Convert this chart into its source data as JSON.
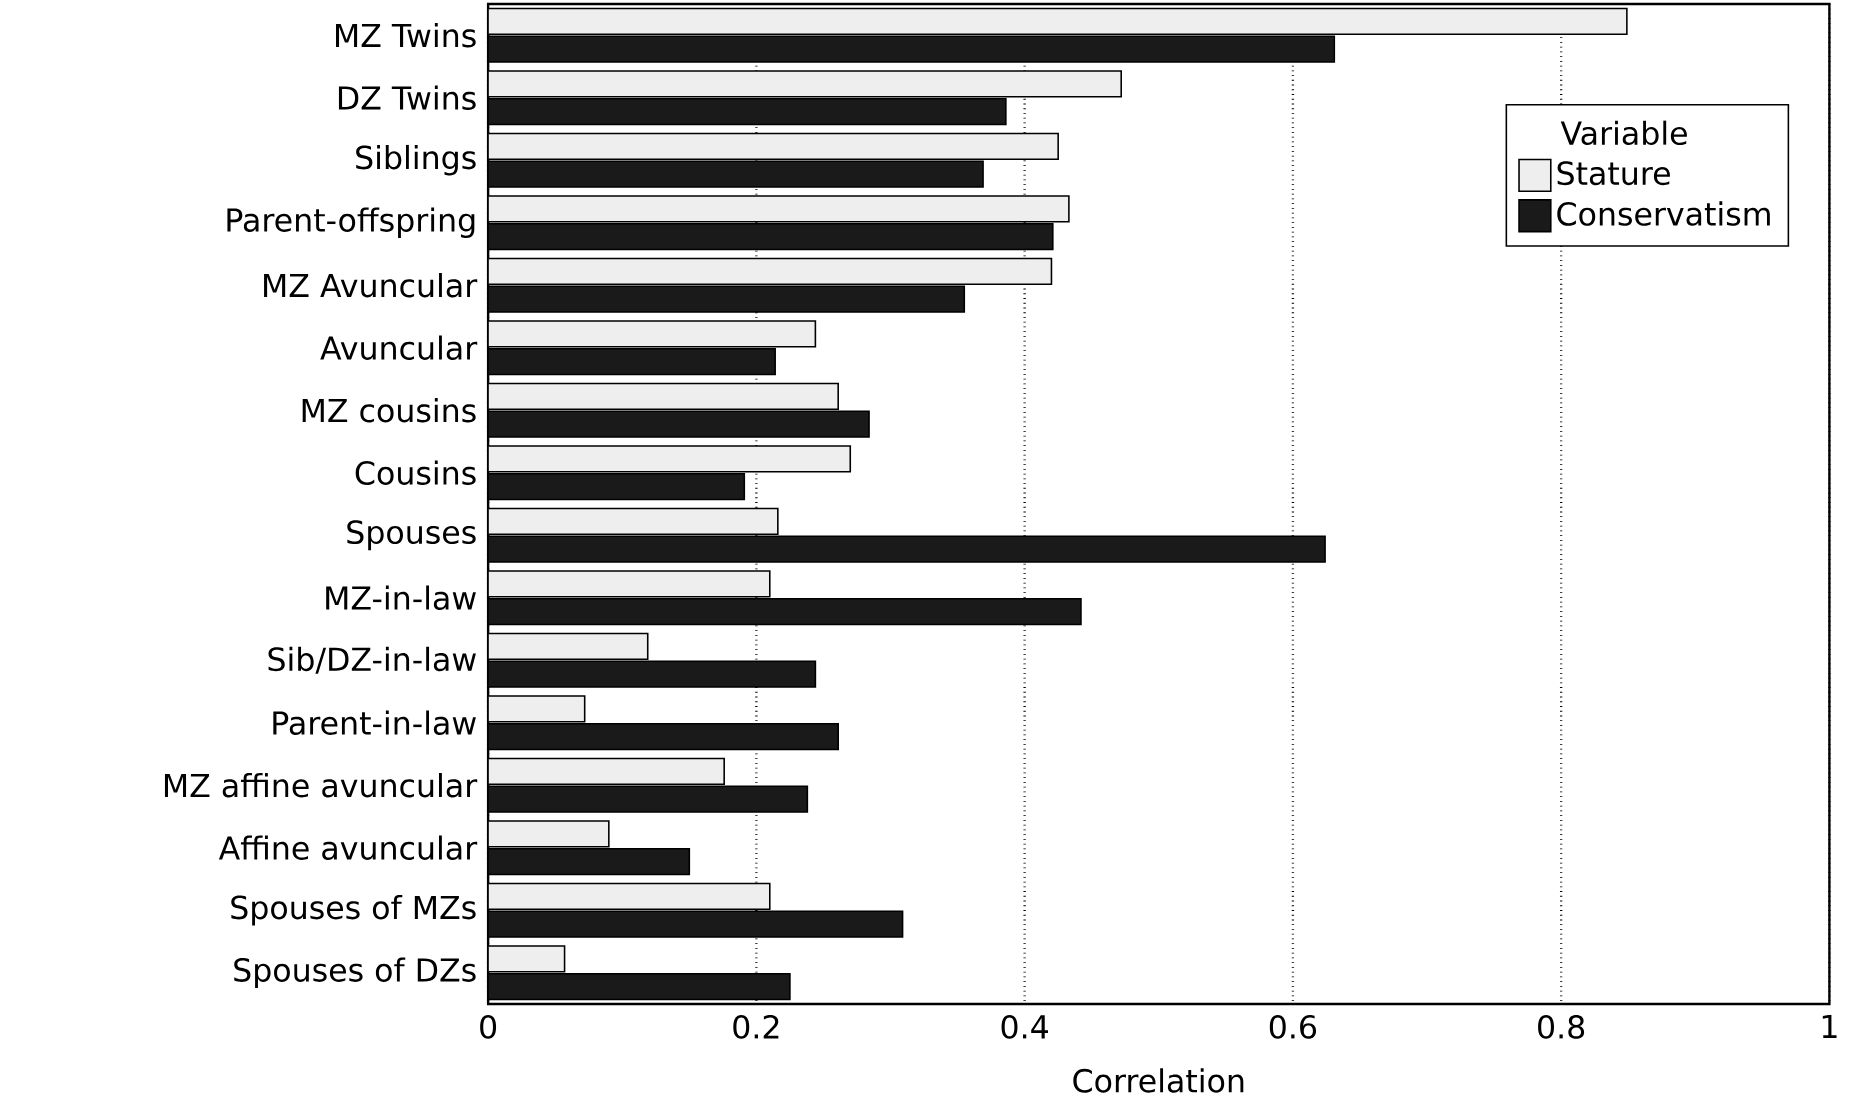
{
  "chart_data": {
    "type": "bar",
    "orientation": "horizontal",
    "xlabel": "Correlation",
    "legend_title": "Variable",
    "legend": "top right",
    "grid": "x",
    "categories": [
      "MZ Twins",
      "DZ Twins",
      "Siblings",
      "Parent-offspring",
      "MZ Avuncular",
      "Avuncular",
      "MZ cousins",
      "Cousins",
      "Spouses",
      "MZ-in-law",
      "Sib/DZ-in-law",
      "Parent-in-law",
      "MZ affine avuncular",
      "Affine avuncular",
      "Spouses of MZs",
      "Spouses of DZs"
    ],
    "xlim": [
      0,
      1
    ],
    "xticks": [
      0,
      0.2,
      0.4,
      0.6,
      0.8,
      1
    ],
    "series": [
      {
        "name": "Stature",
        "color": "#eeeeee",
        "values": [
          0.849,
          0.472,
          0.425,
          0.433,
          0.42,
          0.244,
          0.261,
          0.27,
          0.216,
          0.21,
          0.119,
          0.072,
          0.176,
          0.09,
          0.21,
          0.057
        ]
      },
      {
        "name": "Conservatism",
        "color": "#1a1a1a",
        "values": [
          0.631,
          0.386,
          0.369,
          0.421,
          0.355,
          0.214,
          0.284,
          0.191,
          0.624,
          0.442,
          0.244,
          0.261,
          0.238,
          0.15,
          0.309,
          0.225
        ]
      }
    ]
  }
}
